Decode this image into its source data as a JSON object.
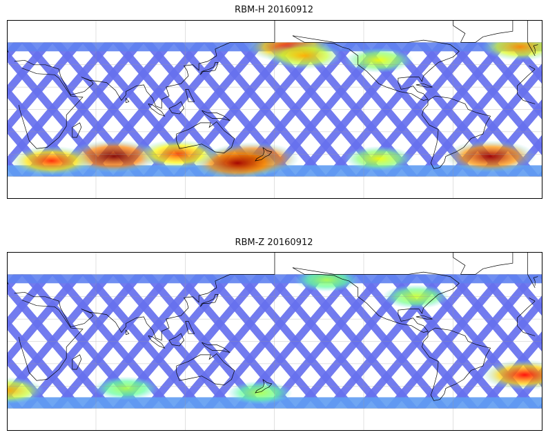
{
  "panels": [
    {
      "title": "RBM-H 20160912",
      "variable": "RBM-H",
      "date": "20160912",
      "hotspots": [
        {
          "lon": 72,
          "lat": -42,
          "intensity": 1.0
        },
        {
          "lon": 165,
          "lat": -44,
          "intensity": 1.0
        },
        {
          "lon": 155,
          "lat": -48,
          "intensity": 0.95
        },
        {
          "lon": 115,
          "lat": -40,
          "intensity": 0.7
        },
        {
          "lon": 30,
          "lat": -46,
          "intensity": 0.75
        },
        {
          "lon": -35,
          "lat": -42,
          "intensity": 0.95
        },
        {
          "lon": -170,
          "lat": 56,
          "intensity": 0.8
        },
        {
          "lon": -160,
          "lat": 48,
          "intensity": 0.55
        },
        {
          "lon": -110,
          "lat": 44,
          "intensity": 0.4
        },
        {
          "lon": -110,
          "lat": -44,
          "intensity": 0.4
        },
        {
          "lon": -15,
          "lat": 56,
          "intensity": 0.6
        }
      ]
    },
    {
      "title": "RBM-Z 20160912",
      "variable": "RBM-Z",
      "date": "20160912",
      "hotspots": [
        {
          "lon": -12,
          "lat": -30,
          "intensity": 0.8
        },
        {
          "lon": 0,
          "lat": -44,
          "intensity": 0.55
        },
        {
          "lon": -85,
          "lat": 40,
          "intensity": 0.35
        },
        {
          "lon": 80,
          "lat": -42,
          "intensity": 0.3
        },
        {
          "lon": 170,
          "lat": -46,
          "intensity": 0.3
        },
        {
          "lon": -145,
          "lat": 55,
          "intensity": 0.3
        }
      ]
    }
  ],
  "map": {
    "projection": "PlateCarree",
    "central_longitude": 180,
    "lon_range": [
      0,
      360
    ],
    "lat_range": [
      -60,
      60
    ],
    "gridlines": true,
    "grid_lon_step": 60,
    "grid_lat_step": 20,
    "colormap": "jet",
    "swath_color_base": "#6670ee"
  }
}
